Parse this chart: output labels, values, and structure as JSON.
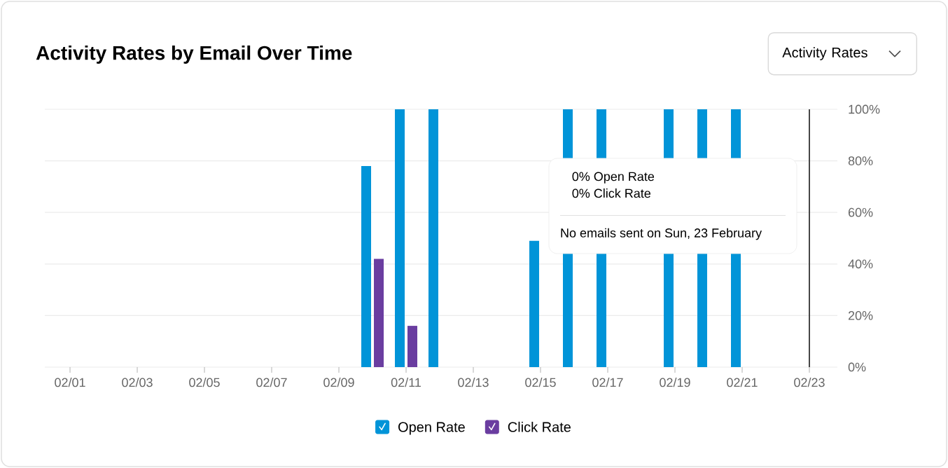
{
  "chart_data": {
    "type": "bar",
    "title": "Activity Rates by Email Over Time",
    "categories": [
      "02/01",
      null,
      "02/03",
      null,
      "02/05",
      null,
      "02/07",
      null,
      "02/09",
      null,
      "02/11",
      null,
      "02/13",
      null,
      "02/15",
      null,
      "02/17",
      null,
      "02/19",
      null,
      "02/21",
      null,
      "02/23"
    ],
    "series": [
      {
        "name": "Open Rate",
        "color": "#0194d8",
        "values": [
          0,
          0,
          0,
          0,
          0,
          0,
          0,
          0,
          0,
          78,
          100,
          100,
          0,
          0,
          49,
          100,
          100,
          0,
          100,
          100,
          100,
          0,
          0
        ]
      },
      {
        "name": "Click Rate",
        "color": "#6a3da0",
        "values": [
          0,
          0,
          0,
          0,
          0,
          0,
          0,
          0,
          0,
          42,
          16,
          0,
          0,
          0,
          0,
          0,
          0,
          0,
          0,
          0,
          0,
          0,
          0
        ]
      }
    ],
    "ylim": [
      0,
      100
    ],
    "yticks": [
      {
        "value": 0,
        "label": "0%"
      },
      {
        "value": 20,
        "label": "20%"
      },
      {
        "value": 40,
        "label": "40%"
      },
      {
        "value": 60,
        "label": "60%"
      },
      {
        "value": 80,
        "label": "80%"
      },
      {
        "value": 100,
        "label": "100%"
      }
    ],
    "grid": "y",
    "legend": "bottom",
    "ref_lines": [
      {
        "axis": "x",
        "value": "02/23",
        "color": "#333333"
      }
    ],
    "annotations": [
      "Activity Rates",
      "0% Open Rate",
      "0% Click Rate",
      "No emails sent on Sun, 23 February"
    ]
  }
}
